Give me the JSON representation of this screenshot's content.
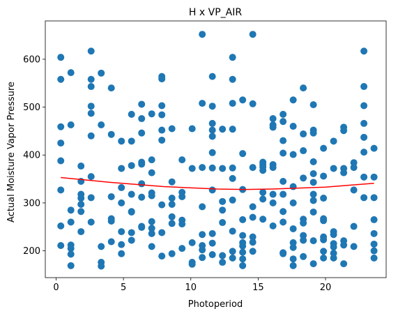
{
  "chart_data": {
    "type": "scatter",
    "title": "H x VP_AIR",
    "xlabel": "Photoperiod",
    "ylabel": "Actual Moisture Vapor Pressure",
    "xlim": [
      -0.8,
      24.5
    ],
    "ylim": [
      144,
      680
    ],
    "xticks": [
      0,
      5,
      10,
      15,
      20
    ],
    "yticks": [
      200,
      300,
      400,
      500,
      600
    ],
    "grid": false,
    "point_color": "#1f77b4",
    "fit_color": "#ff0000",
    "points": [
      [
        0.35,
        604
      ],
      [
        0.35,
        558
      ],
      [
        0.35,
        459
      ],
      [
        0.35,
        425
      ],
      [
        0.35,
        388
      ],
      [
        0.35,
        327
      ],
      [
        0.35,
        252
      ],
      [
        0.35,
        211
      ],
      [
        1.1,
        572
      ],
      [
        1.1,
        463
      ],
      [
        1.1,
        285
      ],
      [
        1.1,
        260
      ],
      [
        1.1,
        212
      ],
      [
        1.1,
        205
      ],
      [
        1.1,
        193
      ],
      [
        1.1,
        169
      ],
      [
        1.85,
        377
      ],
      [
        1.85,
        345
      ],
      [
        1.85,
        318
      ],
      [
        1.85,
        310
      ],
      [
        1.85,
        297
      ],
      [
        1.85,
        282
      ],
      [
        1.85,
        240
      ],
      [
        2.6,
        617
      ],
      [
        2.6,
        558
      ],
      [
        2.6,
        543
      ],
      [
        2.6,
        502
      ],
      [
        2.6,
        487
      ],
      [
        2.6,
        440
      ],
      [
        2.6,
        355
      ],
      [
        2.6,
        311
      ],
      [
        2.6,
        260
      ],
      [
        3.35,
        571
      ],
      [
        3.35,
        463
      ],
      [
        3.35,
        209
      ],
      [
        3.35,
        176
      ],
      [
        3.35,
        168
      ],
      [
        4.1,
        540
      ],
      [
        4.1,
        443
      ],
      [
        4.1,
        313
      ],
      [
        4.1,
        267
      ],
      [
        4.1,
        262
      ],
      [
        4.1,
        219
      ],
      [
        4.85,
        429
      ],
      [
        4.85,
        372
      ],
      [
        4.85,
        332
      ],
      [
        4.85,
        300
      ],
      [
        4.85,
        240
      ],
      [
        4.85,
        213
      ],
      [
        4.85,
        194
      ],
      [
        5.6,
        485
      ],
      [
        5.6,
        429
      ],
      [
        5.6,
        378
      ],
      [
        5.6,
        318
      ],
      [
        5.6,
        282
      ],
      [
        5.6,
        281
      ],
      [
        5.6,
        238
      ],
      [
        5.6,
        222
      ],
      [
        6.35,
        506
      ],
      [
        6.35,
        476
      ],
      [
        6.35,
        446
      ],
      [
        6.35,
        385
      ],
      [
        6.35,
        381
      ],
      [
        6.35,
        340
      ],
      [
        6.35,
        312
      ],
      [
        6.35,
        251
      ],
      [
        6.35,
        249
      ],
      [
        7.1,
        486
      ],
      [
        7.1,
        390
      ],
      [
        7.1,
        363
      ],
      [
        7.1,
        321
      ],
      [
        7.1,
        315
      ],
      [
        7.1,
        261
      ],
      [
        7.1,
        247
      ],
      [
        7.1,
        236
      ],
      [
        7.1,
        209
      ],
      [
        7.85,
        564
      ],
      [
        7.85,
        559
      ],
      [
        7.85,
        503
      ],
      [
        7.85,
        484
      ],
      [
        7.85,
        452
      ],
      [
        7.85,
        431
      ],
      [
        7.85,
        296
      ],
      [
        7.85,
        238
      ],
      [
        7.85,
        189
      ],
      [
        8.6,
        455
      ],
      [
        8.6,
        344
      ],
      [
        8.6,
        310
      ],
      [
        8.6,
        297
      ],
      [
        8.6,
        271
      ],
      [
        8.6,
        257
      ],
      [
        8.6,
        194
      ],
      [
        9.35,
        390
      ],
      [
        9.35,
        322
      ],
      [
        9.35,
        313
      ],
      [
        9.35,
        264
      ],
      [
        9.35,
        256
      ],
      [
        9.35,
        205
      ],
      [
        10.1,
        455
      ],
      [
        10.1,
        372
      ],
      [
        10.1,
        217
      ],
      [
        10.1,
        176
      ],
      [
        10.1,
        172
      ],
      [
        10.85,
        652
      ],
      [
        10.85,
        508
      ],
      [
        10.85,
        374
      ],
      [
        10.85,
        292
      ],
      [
        10.85,
        234
      ],
      [
        10.85,
        211
      ],
      [
        10.85,
        202
      ],
      [
        10.85,
        186
      ],
      [
        11.6,
        564
      ],
      [
        11.6,
        502
      ],
      [
        11.6,
        466
      ],
      [
        11.6,
        452
      ],
      [
        11.6,
        439
      ],
      [
        11.6,
        405
      ],
      [
        11.6,
        373
      ],
      [
        11.6,
        327
      ],
      [
        11.6,
        236
      ],
      [
        11.6,
        216
      ],
      [
        11.6,
        192
      ],
      [
        12.35,
        454
      ],
      [
        12.35,
        372
      ],
      [
        12.35,
        303
      ],
      [
        12.35,
        285
      ],
      [
        12.35,
        259
      ],
      [
        12.35,
        190
      ],
      [
        12.35,
        176
      ],
      [
        13.1,
        604
      ],
      [
        13.1,
        558
      ],
      [
        13.1,
        508
      ],
      [
        13.1,
        454
      ],
      [
        13.1,
        373
      ],
      [
        13.1,
        351
      ],
      [
        13.1,
        306
      ],
      [
        13.1,
        241
      ],
      [
        13.1,
        199
      ],
      [
        13.1,
        185
      ],
      [
        13.85,
        515
      ],
      [
        13.85,
        403
      ],
      [
        13.85,
        328
      ],
      [
        13.85,
        265
      ],
      [
        13.85,
        232
      ],
      [
        13.85,
        217
      ],
      [
        13.85,
        210
      ],
      [
        13.85,
        197
      ],
      [
        13.85,
        183
      ],
      [
        13.85,
        169
      ],
      [
        14.6,
        652
      ],
      [
        14.6,
        507
      ],
      [
        14.6,
        374
      ],
      [
        14.6,
        292
      ],
      [
        14.6,
        270
      ],
      [
        14.6,
        229
      ],
      [
        14.6,
        218
      ],
      [
        14.6,
        199
      ],
      [
        15.35,
        385
      ],
      [
        15.35,
        380
      ],
      [
        15.35,
        375
      ],
      [
        15.35,
        368
      ],
      [
        15.35,
        322
      ],
      [
        15.35,
        308
      ],
      [
        15.35,
        266
      ],
      [
        16.1,
        476
      ],
      [
        16.1,
        463
      ],
      [
        16.1,
        458
      ],
      [
        16.1,
        380
      ],
      [
        16.1,
        374
      ],
      [
        16.1,
        318
      ],
      [
        16.1,
        300
      ],
      [
        16.1,
        252
      ],
      [
        16.85,
        485
      ],
      [
        16.85,
        470
      ],
      [
        16.85,
        430
      ],
      [
        16.85,
        404
      ],
      [
        16.85,
        345
      ],
      [
        16.85,
        318
      ],
      [
        16.85,
        282
      ],
      [
        16.85,
        260
      ],
      [
        16.85,
        196
      ],
      [
        16.85,
        194
      ],
      [
        17.6,
        515
      ],
      [
        17.6,
        460
      ],
      [
        17.6,
        401
      ],
      [
        17.6,
        334
      ],
      [
        17.6,
        300
      ],
      [
        17.6,
        246
      ],
      [
        17.6,
        217
      ],
      [
        17.6,
        207
      ],
      [
        17.6,
        183
      ],
      [
        17.6,
        169
      ],
      [
        18.35,
        540
      ],
      [
        18.35,
        444
      ],
      [
        18.35,
        409
      ],
      [
        18.35,
        352
      ],
      [
        18.35,
        266
      ],
      [
        18.35,
        258
      ],
      [
        18.35,
        232
      ],
      [
        18.35,
        222
      ],
      [
        18.35,
        188
      ],
      [
        19.1,
        505
      ],
      [
        19.1,
        452
      ],
      [
        19.1,
        446
      ],
      [
        19.1,
        386
      ],
      [
        19.1,
        361
      ],
      [
        19.1,
        343
      ],
      [
        19.1,
        318
      ],
      [
        19.1,
        305
      ],
      [
        19.1,
        281
      ],
      [
        19.1,
        221
      ],
      [
        19.1,
        173
      ],
      [
        19.85,
        414
      ],
      [
        19.85,
        356
      ],
      [
        19.85,
        310
      ],
      [
        19.85,
        267
      ],
      [
        19.85,
        263
      ],
      [
        19.85,
        229
      ],
      [
        19.85,
        223
      ],
      [
        19.85,
        199
      ],
      [
        19.85,
        185
      ],
      [
        20.6,
        429
      ],
      [
        20.6,
        372
      ],
      [
        20.6,
        240
      ],
      [
        20.6,
        234
      ],
      [
        20.6,
        215
      ],
      [
        20.6,
        208
      ],
      [
        20.6,
        195
      ],
      [
        20.6,
        185
      ],
      [
        21.35,
        458
      ],
      [
        21.35,
        451
      ],
      [
        21.35,
        372
      ],
      [
        21.35,
        363
      ],
      [
        21.35,
        221
      ],
      [
        21.35,
        212
      ],
      [
        21.35,
        173
      ],
      [
        22.1,
        384
      ],
      [
        22.1,
        374
      ],
      [
        22.1,
        327
      ],
      [
        22.1,
        251
      ],
      [
        22.1,
        209
      ],
      [
        22.85,
        617
      ],
      [
        22.85,
        543
      ],
      [
        22.85,
        503
      ],
      [
        22.85,
        466
      ],
      [
        22.85,
        437
      ],
      [
        22.85,
        406
      ],
      [
        22.85,
        354
      ],
      [
        22.85,
        311
      ],
      [
        23.6,
        414
      ],
      [
        23.6,
        354
      ],
      [
        23.6,
        311
      ],
      [
        23.6,
        265
      ],
      [
        23.6,
        236
      ],
      [
        23.6,
        214
      ],
      [
        23.6,
        200
      ],
      [
        23.6,
        185
      ]
    ],
    "fit_curve": {
      "x": [
        0.35,
        4.0,
        8.0,
        12.0,
        14.0,
        16.0,
        20.0,
        23.6
      ],
      "y": [
        353,
        343,
        334,
        329,
        328,
        329,
        333,
        341
      ]
    }
  }
}
